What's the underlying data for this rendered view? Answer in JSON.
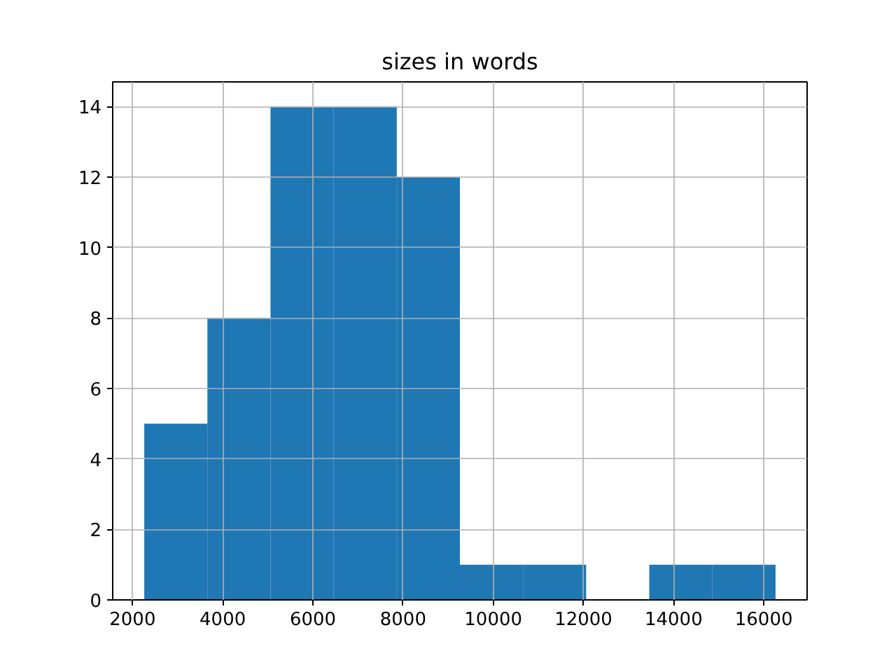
{
  "chart_data": {
    "type": "histogram",
    "title": "sizes in words",
    "bins": [
      2260,
      3660,
      5060,
      6460,
      7860,
      9260,
      10660,
      12060,
      13460,
      14860,
      16260
    ],
    "values": [
      5,
      8,
      14,
      14,
      12,
      1,
      1,
      0,
      1,
      1
    ],
    "color": "#1f77b4",
    "xlim": [
      1560,
      16960
    ],
    "xticks": [
      2000,
      4000,
      6000,
      8000,
      10000,
      12000,
      14000,
      16000
    ],
    "ylim": [
      0,
      14.7
    ],
    "yticks": [
      0,
      2,
      4,
      6,
      8,
      10,
      12,
      14
    ],
    "grid": true
  }
}
